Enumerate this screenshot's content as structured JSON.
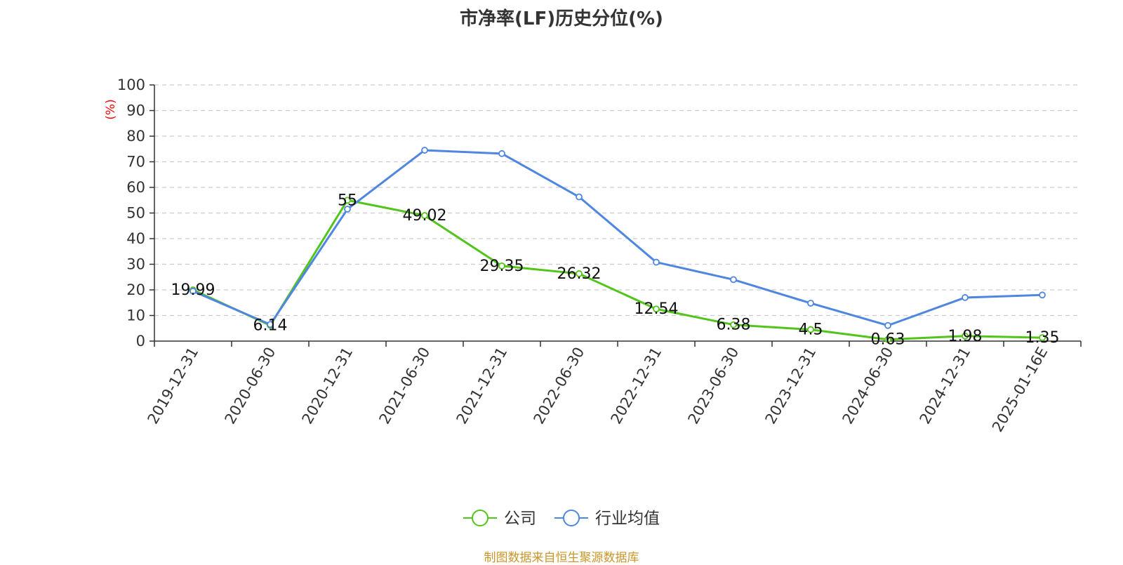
{
  "chart_data": {
    "type": "line",
    "title": "市净率(LF)历史分位(%)",
    "ylabel": "(%)",
    "ylim": [
      0,
      100
    ],
    "yticks": [
      0,
      10,
      20,
      30,
      40,
      50,
      60,
      70,
      80,
      90,
      100
    ],
    "grid": true,
    "legend_position": "bottom-center",
    "categories": [
      "2019-12-31",
      "2020-06-30",
      "2020-12-31",
      "2021-06-30",
      "2021-12-31",
      "2022-06-30",
      "2022-12-31",
      "2023-06-30",
      "2023-12-31",
      "2024-06-30",
      "2024-12-31",
      "2025-01-16E"
    ],
    "series": [
      {
        "name": "公司",
        "color": "#52c41a",
        "values": [
          19.99,
          6.14,
          55,
          49.02,
          29.35,
          26.32,
          12.54,
          6.38,
          4.5,
          0.63,
          1.98,
          1.35
        ],
        "labels": [
          "19.99",
          "6.14",
          "55",
          "49.02",
          "29.35",
          "26.32",
          "12.54",
          "6.38",
          "4.5",
          "0.63",
          "1.98",
          "1.35"
        ]
      },
      {
        "name": "行业均值",
        "color": "#4f86e0",
        "values": [
          19.5,
          6.5,
          51.5,
          74.5,
          73.2,
          56.3,
          30.8,
          24.0,
          14.8,
          6.1,
          17.0,
          18.0
        ]
      }
    ]
  },
  "footer": {
    "source": "制图数据来自恒生聚源数据库"
  }
}
